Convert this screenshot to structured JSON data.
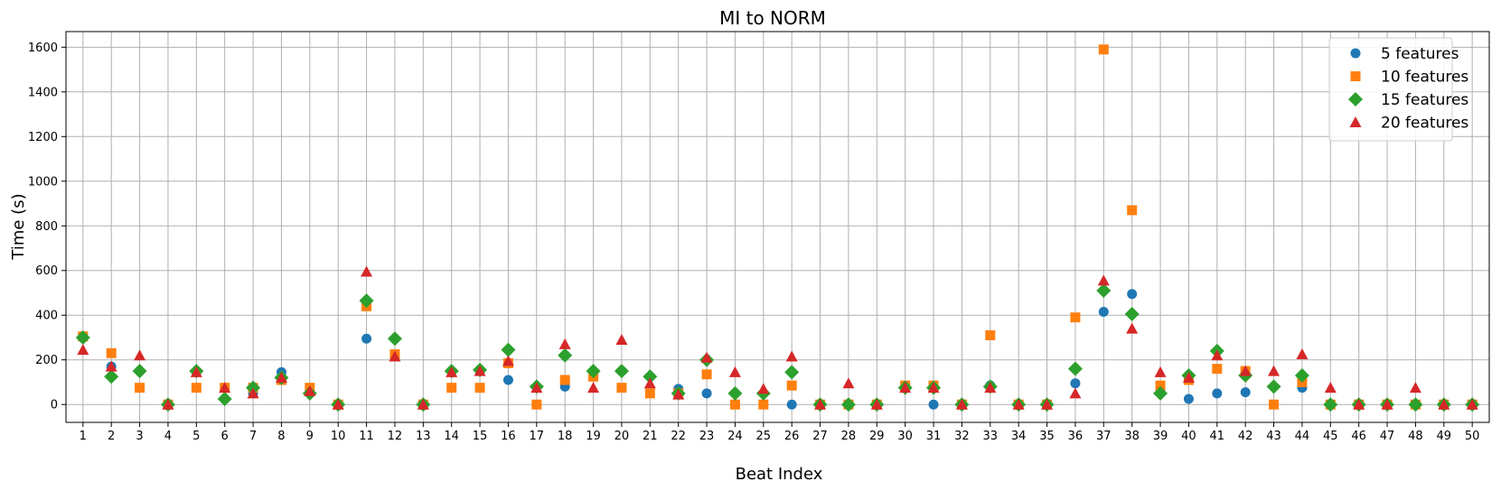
{
  "chart_data": {
    "type": "scatter",
    "title": "MI to NORM",
    "xlabel": "Beat Index",
    "ylabel": "Time (s)",
    "xlim": [
      0.4,
      50.6
    ],
    "ylim": [
      -80,
      1670
    ],
    "yticks": [
      0,
      200,
      400,
      600,
      800,
      1000,
      1200,
      1400,
      1600
    ],
    "x": [
      1,
      2,
      3,
      4,
      5,
      6,
      7,
      8,
      9,
      10,
      11,
      12,
      13,
      14,
      15,
      16,
      17,
      18,
      19,
      20,
      21,
      22,
      23,
      24,
      25,
      26,
      27,
      28,
      29,
      30,
      31,
      32,
      33,
      34,
      35,
      36,
      37,
      38,
      39,
      40,
      41,
      42,
      43,
      44,
      45,
      46,
      47,
      48,
      49,
      50
    ],
    "grid": true,
    "legend_position": "top-right",
    "series": [
      {
        "name": "5 features",
        "color": "#1f77b4",
        "marker": "circle",
        "values": [
          305,
          170,
          150,
          0,
          145,
          25,
          50,
          145,
          50,
          0,
          295,
          295,
          0,
          150,
          150,
          110,
          80,
          80,
          150,
          150,
          125,
          70,
          50,
          50,
          50,
          0,
          0,
          0,
          0,
          80,
          0,
          0,
          85,
          0,
          0,
          95,
          415,
          495,
          50,
          25,
          50,
          55,
          80,
          75,
          0,
          0,
          0,
          0,
          0,
          0
        ]
      },
      {
        "name": "10 features",
        "color": "#ff7f0e",
        "marker": "square",
        "values": [
          305,
          230,
          75,
          0,
          75,
          75,
          75,
          110,
          75,
          0,
          440,
          225,
          0,
          75,
          75,
          185,
          0,
          110,
          125,
          75,
          50,
          50,
          135,
          0,
          0,
          85,
          0,
          0,
          0,
          85,
          85,
          0,
          310,
          0,
          0,
          390,
          1590,
          870,
          85,
          110,
          160,
          150,
          0,
          100,
          0,
          0,
          0,
          0,
          0,
          0
        ]
      },
      {
        "name": "15 features",
        "color": "#2ca02c",
        "marker": "diamond",
        "values": [
          300,
          125,
          150,
          0,
          150,
          25,
          75,
          120,
          50,
          0,
          465,
          295,
          0,
          150,
          155,
          245,
          80,
          220,
          150,
          150,
          125,
          50,
          200,
          50,
          50,
          145,
          0,
          0,
          0,
          75,
          75,
          0,
          80,
          0,
          0,
          160,
          510,
          405,
          50,
          130,
          240,
          130,
          80,
          130,
          0,
          0,
          0,
          0,
          0,
          0
        ]
      },
      {
        "name": "20 features",
        "color": "#d62728",
        "marker": "triangle",
        "values": [
          245,
          170,
          220,
          0,
          145,
          75,
          50,
          120,
          60,
          0,
          595,
          215,
          0,
          145,
          150,
          195,
          75,
          270,
          75,
          290,
          95,
          45,
          210,
          145,
          70,
          215,
          0,
          95,
          0,
          75,
          75,
          0,
          75,
          0,
          0,
          50,
          555,
          340,
          145,
          120,
          220,
          150,
          150,
          225,
          75,
          0,
          0,
          75,
          0,
          0
        ]
      }
    ]
  }
}
